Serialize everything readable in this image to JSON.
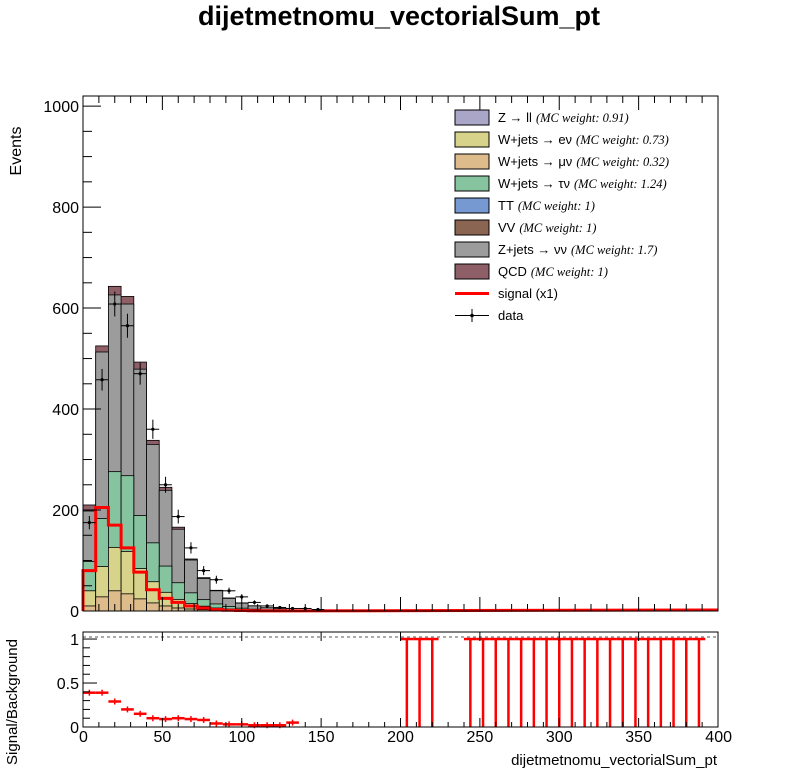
{
  "chart_data": {
    "type": "bar",
    "title": "dijetmetnomu_vectorialSum_pt",
    "xlabel": "dijetmetnomu_vectorialSum_pt",
    "ylabel": "Events",
    "ratio_ylabel": "Signal/Background",
    "xlim": [
      0,
      400
    ],
    "ylim": [
      0,
      1020
    ],
    "ratio_ylim": [
      0,
      1.08
    ],
    "bin_width": 8,
    "x_ticks": [
      "0",
      "50",
      "100",
      "150",
      "200",
      "250",
      "300",
      "350",
      "400"
    ],
    "y_ticks": [
      "0",
      "200",
      "400",
      "600",
      "800",
      "1000"
    ],
    "ratio_y_ticks": [
      "0",
      "0.5",
      "1"
    ],
    "legend_position": "top-right",
    "stack_order": [
      "W+jets → μν",
      "W+jets → eν",
      "W+jets → τν",
      "Z+jets → νν",
      "QCD"
    ],
    "legend": [
      {
        "label": "Z → ll",
        "weight": "(MC weight: 0.91)",
        "color": "#a9a6c8",
        "kind": "fill"
      },
      {
        "label": "W+jets → eν",
        "weight": "(MC weight: 0.73)",
        "color": "#d8d38a",
        "kind": "fill"
      },
      {
        "label": "W+jets → μν",
        "weight": "(MC weight: 0.32)",
        "color": "#debb8b",
        "kind": "fill"
      },
      {
        "label": "W+jets → τν",
        "weight": "(MC weight: 1.24)",
        "color": "#86c4a0",
        "kind": "fill"
      },
      {
        "label": "TT",
        "weight": "(MC weight: 1)",
        "color": "#7799d1",
        "kind": "fill"
      },
      {
        "label": "VV",
        "weight": "(MC weight: 1)",
        "color": "#8a6552",
        "kind": "fill"
      },
      {
        "label": "Z+jets → νν",
        "weight": "(MC weight: 1.7)",
        "color": "#9c9c9c",
        "kind": "fill"
      },
      {
        "label": "QCD",
        "weight": "(MC weight: 1)",
        "color": "#8f5f68",
        "kind": "fill"
      },
      {
        "label": "signal (x1)",
        "weight": "",
        "color": "#ff0000",
        "kind": "line"
      },
      {
        "label": "data",
        "weight": "",
        "color": "#000000",
        "kind": "marker"
      }
    ],
    "series": [
      {
        "name": "W+jets → μν",
        "color": "#debb8b",
        "values": [
          10,
          28,
          40,
          34,
          24,
          16,
          10,
          6,
          4,
          2.5,
          1.5,
          1,
          0.6,
          0.4,
          0.3,
          0.2
        ]
      },
      {
        "name": "W+jets → eν",
        "color": "#d8d38a",
        "values": [
          30,
          60,
          86,
          84,
          60,
          42,
          27,
          17,
          11,
          7,
          4.5,
          3,
          2,
          1.2,
          0.8,
          0.5
        ]
      },
      {
        "name": "W+jets → τν",
        "color": "#86c4a0",
        "values": [
          58,
          95,
          150,
          150,
          105,
          77,
          52,
          33,
          21,
          13,
          8,
          5,
          3,
          2,
          1.2,
          0.8
        ]
      },
      {
        "name": "Z+jets → νν",
        "color": "#9c9c9c",
        "values": [
          100,
          330,
          350,
          340,
          290,
          195,
          150,
          106,
          65,
          42,
          26,
          16,
          10,
          6.5,
          4,
          3
        ]
      },
      {
        "name": "QCD",
        "color": "#8f5f68",
        "values": [
          12,
          12,
          17,
          15,
          14,
          8,
          6,
          4,
          2,
          1.5,
          1,
          0.8,
          0.5,
          0.3,
          0.2,
          0.2
        ]
      }
    ],
    "signal": {
      "name": "signal (x1)",
      "color": "#ff0000",
      "values": [
        80,
        205,
        170,
        125,
        77,
        42,
        25,
        17,
        10,
        6,
        3,
        1.5,
        1,
        0.5,
        0.3,
        0.2
      ]
    },
    "data": {
      "x": [
        4,
        12,
        20,
        28,
        36,
        44,
        52,
        60,
        68,
        76,
        84,
        92,
        100,
        108,
        116,
        124,
        132,
        140,
        148
      ],
      "y": [
        175,
        458,
        608,
        565,
        470,
        360,
        250,
        187,
        125,
        80,
        62,
        40,
        28,
        17,
        10,
        7,
        5,
        5,
        3
      ]
    },
    "ratio": {
      "x": [
        4,
        12,
        20,
        28,
        36,
        44,
        52,
        60,
        68,
        76,
        84,
        92,
        100,
        108,
        116,
        124,
        132
      ],
      "y": [
        0.39,
        0.39,
        0.29,
        0.2,
        0.15,
        0.1,
        0.09,
        0.1,
        0.09,
        0.08,
        0.04,
        0.03,
        0.03,
        0.02,
        0.02,
        0.02,
        0.05
      ]
    },
    "ratio_spikes": [
      204,
      212,
      220,
      244,
      252,
      260,
      268,
      276,
      284,
      292,
      300,
      308,
      316,
      324,
      332,
      340,
      348,
      356,
      364,
      372,
      380,
      388
    ]
  }
}
